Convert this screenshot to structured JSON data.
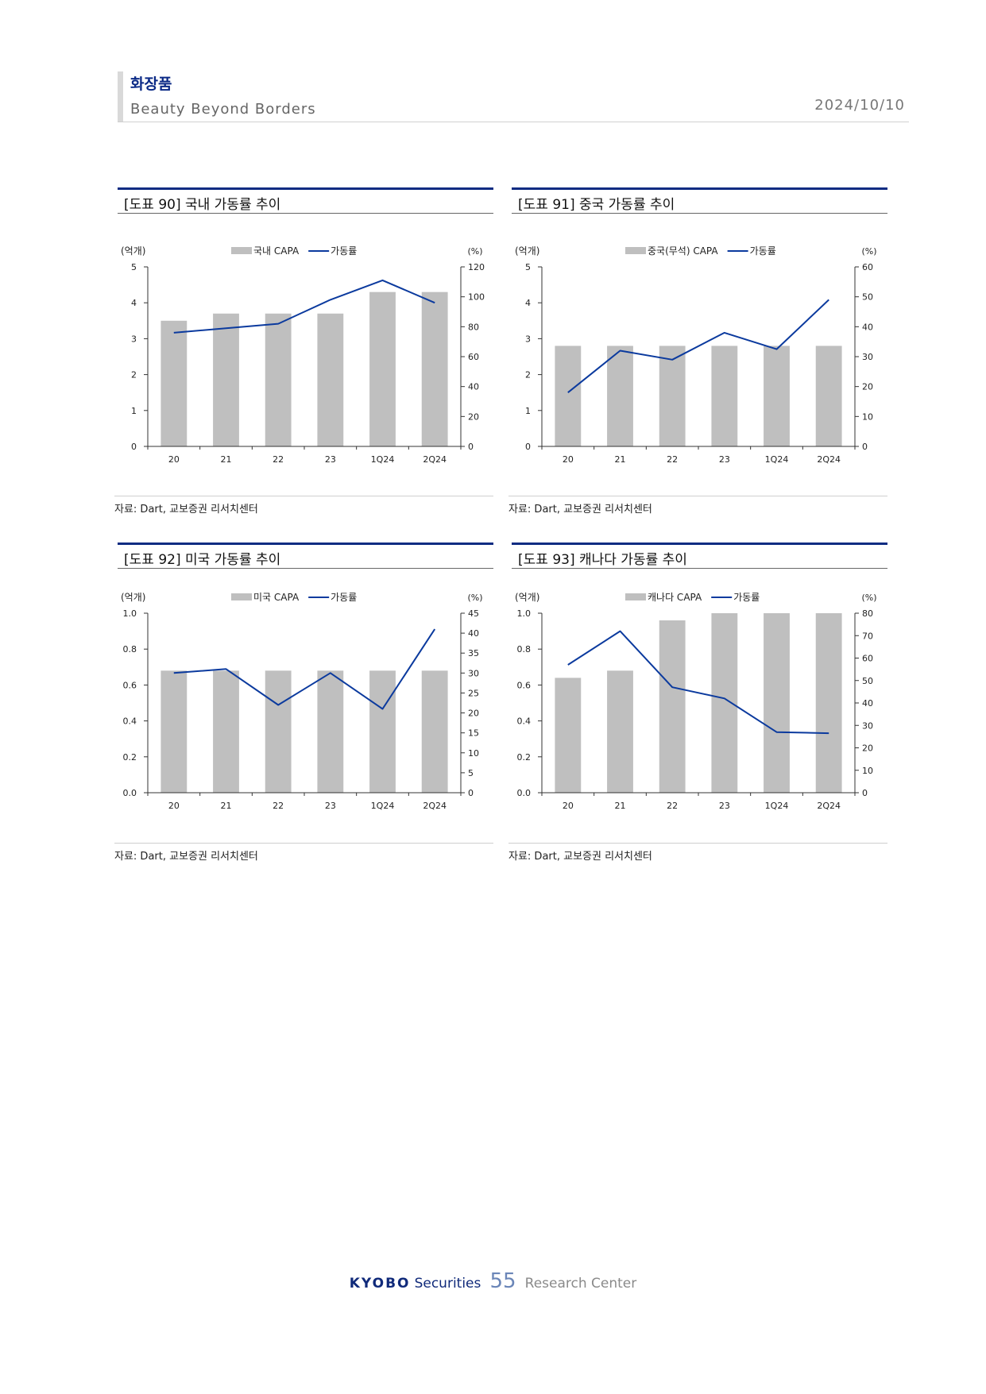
{
  "header": {
    "category": "화장품",
    "subtitle": "Beauty Beyond Borders",
    "date": "2024/10/10"
  },
  "colors": {
    "bar": "#bfbfbf",
    "line": "#0b3a9e",
    "accent": "#0f2c82"
  },
  "panels": [
    {
      "title": "[도표 90] 국내 가동률 추이",
      "source": "자료: Dart, 교보증권 리서치센터"
    },
    {
      "title": "[도표 91] 중국 가동률 추이",
      "source": "자료: Dart, 교보증권 리서치센터"
    },
    {
      "title": "[도표 92] 미국 가동률 추이",
      "source": "자료: Dart, 교보증권 리서치센터"
    },
    {
      "title": "[도표 93] 캐나다 가동률 추이",
      "source": "자료: Dart, 교보증권 리서치센터"
    }
  ],
  "chart_data": [
    {
      "type": "bar",
      "title": "[도표 90] 국내 가동률 추이",
      "categories": [
        "20",
        "21",
        "22",
        "23",
        "1Q24",
        "2Q24"
      ],
      "ylabel": "(억개)",
      "y2label": "(%)",
      "ylim": [
        0,
        5
      ],
      "yticks": [
        0,
        1,
        2,
        3,
        4,
        5
      ],
      "ytick_labels": [
        "0",
        "1",
        "2",
        "3",
        "4",
        "5"
      ],
      "y2lim": [
        0,
        120
      ],
      "y2ticks": [
        0,
        20,
        40,
        60,
        80,
        100,
        120
      ],
      "y2tick_labels": [
        "0",
        "20",
        "40",
        "60",
        "80",
        "100",
        "120"
      ],
      "series": [
        {
          "name": "국내 CAPA",
          "type": "bar",
          "axis": "left",
          "values": [
            3.5,
            3.7,
            3.7,
            3.7,
            4.3,
            4.3
          ]
        },
        {
          "name": "가동률",
          "type": "line",
          "axis": "right",
          "values": [
            76,
            79,
            82,
            98,
            111,
            96
          ]
        }
      ]
    },
    {
      "type": "bar",
      "title": "[도표 91] 중국 가동률 추이",
      "categories": [
        "20",
        "21",
        "22",
        "23",
        "1Q24",
        "2Q24"
      ],
      "ylabel": "(억개)",
      "y2label": "(%)",
      "ylim": [
        0,
        5
      ],
      "yticks": [
        0,
        1,
        2,
        3,
        4,
        5
      ],
      "ytick_labels": [
        "0",
        "1",
        "2",
        "3",
        "4",
        "5"
      ],
      "y2lim": [
        0,
        60
      ],
      "y2ticks": [
        0,
        10,
        20,
        30,
        40,
        50,
        60
      ],
      "y2tick_labels": [
        "0",
        "10",
        "20",
        "30",
        "40",
        "50",
        "60"
      ],
      "series": [
        {
          "name": "중국(무석) CAPA",
          "type": "bar",
          "axis": "left",
          "values": [
            2.8,
            2.8,
            2.8,
            2.8,
            2.8,
            2.8
          ]
        },
        {
          "name": "가동률",
          "type": "line",
          "axis": "right",
          "values": [
            18,
            32,
            29,
            38,
            32.5,
            49
          ]
        }
      ]
    },
    {
      "type": "bar",
      "title": "[도표 92] 미국 가동률 추이",
      "categories": [
        "20",
        "21",
        "22",
        "23",
        "1Q24",
        "2Q24"
      ],
      "ylabel": "(억개)",
      "y2label": "(%)",
      "ylim": [
        0,
        1.0
      ],
      "yticks": [
        0,
        0.2,
        0.4,
        0.6,
        0.8,
        1.0
      ],
      "ytick_labels": [
        "0.0",
        "0.2",
        "0.4",
        "0.6",
        "0.8",
        "1.0"
      ],
      "y2lim": [
        0,
        45
      ],
      "y2ticks": [
        0,
        5,
        10,
        15,
        20,
        25,
        30,
        35,
        40,
        45
      ],
      "y2tick_labels": [
        "0",
        "5",
        "10",
        "15",
        "20",
        "25",
        "30",
        "35",
        "40",
        "45"
      ],
      "series": [
        {
          "name": "미국 CAPA",
          "type": "bar",
          "axis": "left",
          "values": [
            0.68,
            0.68,
            0.68,
            0.68,
            0.68,
            0.68
          ]
        },
        {
          "name": "가동률",
          "type": "line",
          "axis": "right",
          "values": [
            30,
            31,
            22,
            30,
            21,
            41
          ]
        }
      ]
    },
    {
      "type": "bar",
      "title": "[도표 93] 캐나다 가동률 추이",
      "categories": [
        "20",
        "21",
        "22",
        "23",
        "1Q24",
        "2Q24"
      ],
      "ylabel": "(억개)",
      "y2label": "(%)",
      "ylim": [
        0,
        1.0
      ],
      "yticks": [
        0,
        0.2,
        0.4,
        0.6,
        0.8,
        1.0
      ],
      "ytick_labels": [
        "0.0",
        "0.2",
        "0.4",
        "0.6",
        "0.8",
        "1.0"
      ],
      "y2lim": [
        0,
        80
      ],
      "y2ticks": [
        0,
        10,
        20,
        30,
        40,
        50,
        60,
        70,
        80
      ],
      "y2tick_labels": [
        "0",
        "10",
        "20",
        "30",
        "40",
        "50",
        "60",
        "70",
        "80"
      ],
      "series": [
        {
          "name": "캐나다 CAPA",
          "type": "bar",
          "axis": "left",
          "values": [
            0.64,
            0.68,
            0.96,
            1.0,
            1.0,
            1.0
          ]
        },
        {
          "name": "가동률",
          "type": "line",
          "axis": "right",
          "values": [
            57,
            72,
            47,
            42,
            27,
            26.5
          ]
        }
      ]
    }
  ],
  "footer": {
    "brand": "KYOBO",
    "brand_suffix": "Securities",
    "page": "55",
    "center": "Research Center"
  }
}
